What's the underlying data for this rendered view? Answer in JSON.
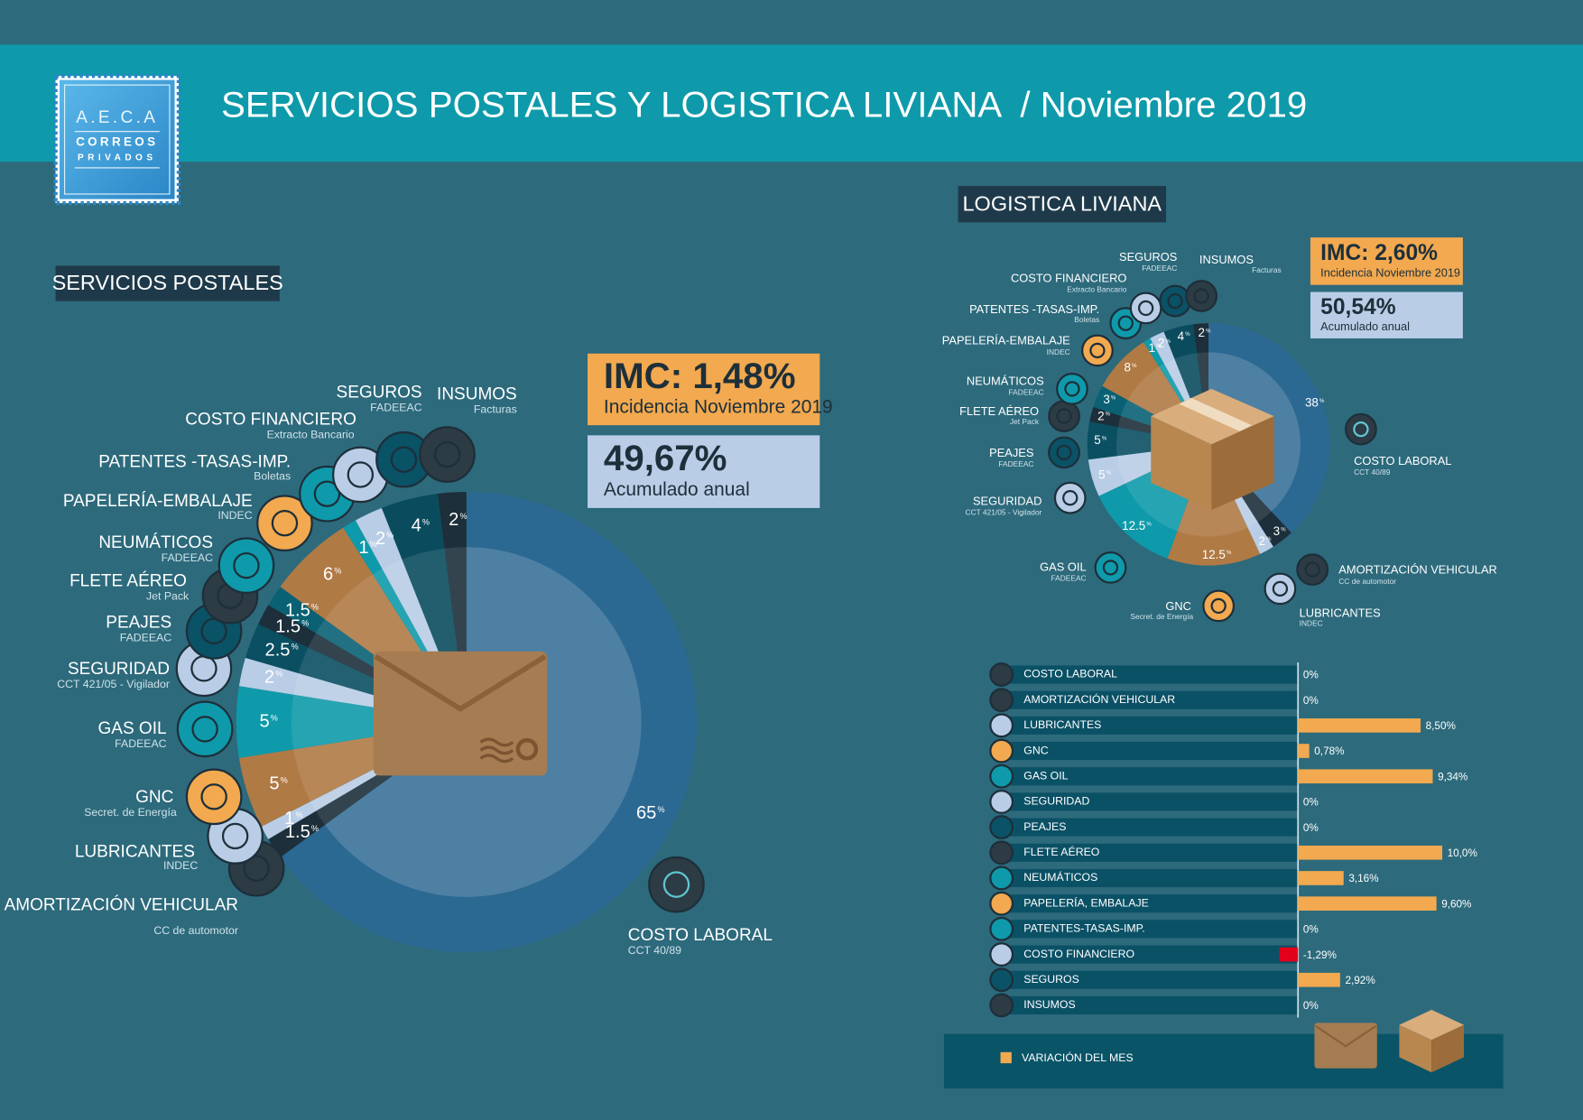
{
  "header": {
    "logo": [
      "A.E.C.A",
      "CORREOS",
      "PRIVADOS"
    ],
    "title": "SERVICIOS POSTALES Y LOGISTICA LIVIANA  / Noviembre 2019"
  },
  "chart_data": [
    {
      "type": "pie",
      "title": "SERVICIOS POSTALES",
      "categories": [
        "COSTO LABORAL",
        "AMORTIZACIÓN VEHICULAR",
        "LUBRICANTES",
        "GNC",
        "GAS OIL",
        "SEGURIDAD",
        "PEAJES",
        "FLETE AÉREO",
        "NEUMÁTICOS",
        "PAPELERÍA-EMBALAJE",
        "PATENTES -TASAS-IMP.",
        "COSTO FINANCIERO",
        "SEGUROS",
        "INSUMOS"
      ],
      "sources": [
        "CCT 40/89",
        "CC de automotor",
        "INDEC",
        "Secret. de Energía",
        "FADEEAC",
        "CCT 421/05 - Vigilador",
        "FADEEAC",
        "Jet Pack",
        "FADEEAC",
        "INDEC",
        "Boletas",
        "Extracto Bancario",
        "FADEEAC",
        "Facturas"
      ],
      "values": [
        65,
        1.5,
        1,
        5,
        5,
        2,
        2.5,
        1.5,
        1.5,
        6,
        1,
        2,
        4,
        2
      ],
      "colors": [
        "#2b6892",
        "#1c2f3a",
        "#b9cde6",
        "#b07a45",
        "#0e9aaa",
        "#b9cde6",
        "#0a4f62",
        "#1c2f3a",
        "#0a6174",
        "#b07a45",
        "#0e9aaa",
        "#b9cde6",
        "#0a4c5e",
        "#1c2f3a"
      ],
      "unit": "%",
      "annotations": [
        {
          "text": "IMC: 1,48%",
          "subtext": "Incidencia Noviembre 2019"
        },
        {
          "text": "49,67%",
          "subtext": "Acumulado anual"
        }
      ]
    },
    {
      "type": "pie",
      "title": "LOGISTICA LIVIANA",
      "categories": [
        "COSTO LABORAL",
        "AMORTIZACIÓN VEHICULAR",
        "LUBRICANTES",
        "GNC",
        "GAS OIL",
        "SEGURIDAD",
        "PEAJES",
        "FLETE AÉREO",
        "NEUMÁTICOS",
        "PAPELERÍA-EMBALAJE",
        "PATENTES -TASAS-IMP.",
        "COSTO FINANCIERO",
        "SEGUROS",
        "INSUMOS"
      ],
      "sources": [
        "CCT 40/89",
        "CC de automotor",
        "INDEC",
        "Secret. de Energía",
        "FADEEAC",
        "CCT 421/05 - Vigilador",
        "FADEEAC",
        "Jet Pack",
        "FADEEAC",
        "INDEC",
        "Boletas",
        "Extracto Bancario",
        "FADEEAC",
        "Facturas"
      ],
      "values": [
        38,
        3,
        2,
        12.5,
        12.5,
        5,
        5,
        2,
        3,
        8,
        1,
        2,
        4,
        2
      ],
      "colors": [
        "#2b6892",
        "#1c2f3a",
        "#b9cde6",
        "#b07a45",
        "#0e9aaa",
        "#b9cde6",
        "#0a4f62",
        "#1c2f3a",
        "#0a6174",
        "#b07a45",
        "#0e9aaa",
        "#b9cde6",
        "#0a4c5e",
        "#1c2f3a"
      ],
      "unit": "%",
      "annotations": [
        {
          "text": "IMC: 2,60%",
          "subtext": "Incidencia Noviembre 2019"
        },
        {
          "text": "50,54%",
          "subtext": "Acumulado anual"
        }
      ]
    },
    {
      "type": "bar",
      "orientation": "horizontal",
      "categories": [
        "COSTO LABORAL",
        "AMORTIZACIÓN VEHICULAR",
        "LUBRICANTES",
        "GNC",
        "GAS OIL",
        "SEGURIDAD",
        "PEAJES",
        "FLETE AÉREO",
        "NEUMÁTICOS",
        "PAPELERÍA, EMBALAJE",
        "PATENTES-TASAS-IMP.",
        "COSTO FINANCIERO",
        "SEGUROS",
        "INSUMOS"
      ],
      "series": [
        {
          "name": "VARIACIÓN DEL MES",
          "color": "#f2a94f",
          "values": [
            0,
            0,
            8.5,
            0.78,
            9.34,
            0,
            0,
            10.0,
            3.16,
            9.6,
            0,
            -1.29,
            2.92,
            0
          ],
          "value_labels": [
            "0%",
            "0%",
            "8,50%",
            "0,78%",
            "9,34%",
            "0%",
            "0%",
            "10,0%",
            "3,16%",
            "9,60%",
            "0%",
            "-1,29%",
            "2,92%",
            "0%"
          ]
        }
      ],
      "negative_color": "#e3001b",
      "xlim": [
        -20,
        15
      ]
    }
  ]
}
